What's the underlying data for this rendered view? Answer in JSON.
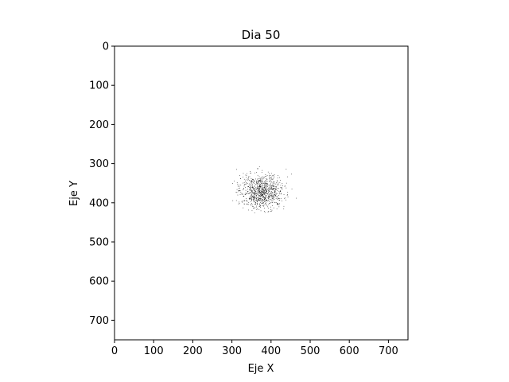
{
  "chart_data": {
    "type": "heatmap",
    "title": "Dia 50",
    "xlabel": "Eje X",
    "ylabel": "Eje Y",
    "xlim": [
      0,
      750
    ],
    "ylim": [
      750,
      0
    ],
    "xticks": [
      0,
      100,
      200,
      300,
      400,
      500,
      600,
      700
    ],
    "yticks": [
      0,
      100,
      200,
      300,
      400,
      500,
      600,
      700
    ],
    "grid": false,
    "colormap": [
      "#ffffff",
      "#000000"
    ],
    "cluster": {
      "center_x": 375,
      "center_y": 370,
      "spread_x": 28,
      "spread_y": 22,
      "extent_x": [
        300,
        470
      ],
      "extent_y": [
        305,
        435
      ],
      "count": 900
    }
  }
}
